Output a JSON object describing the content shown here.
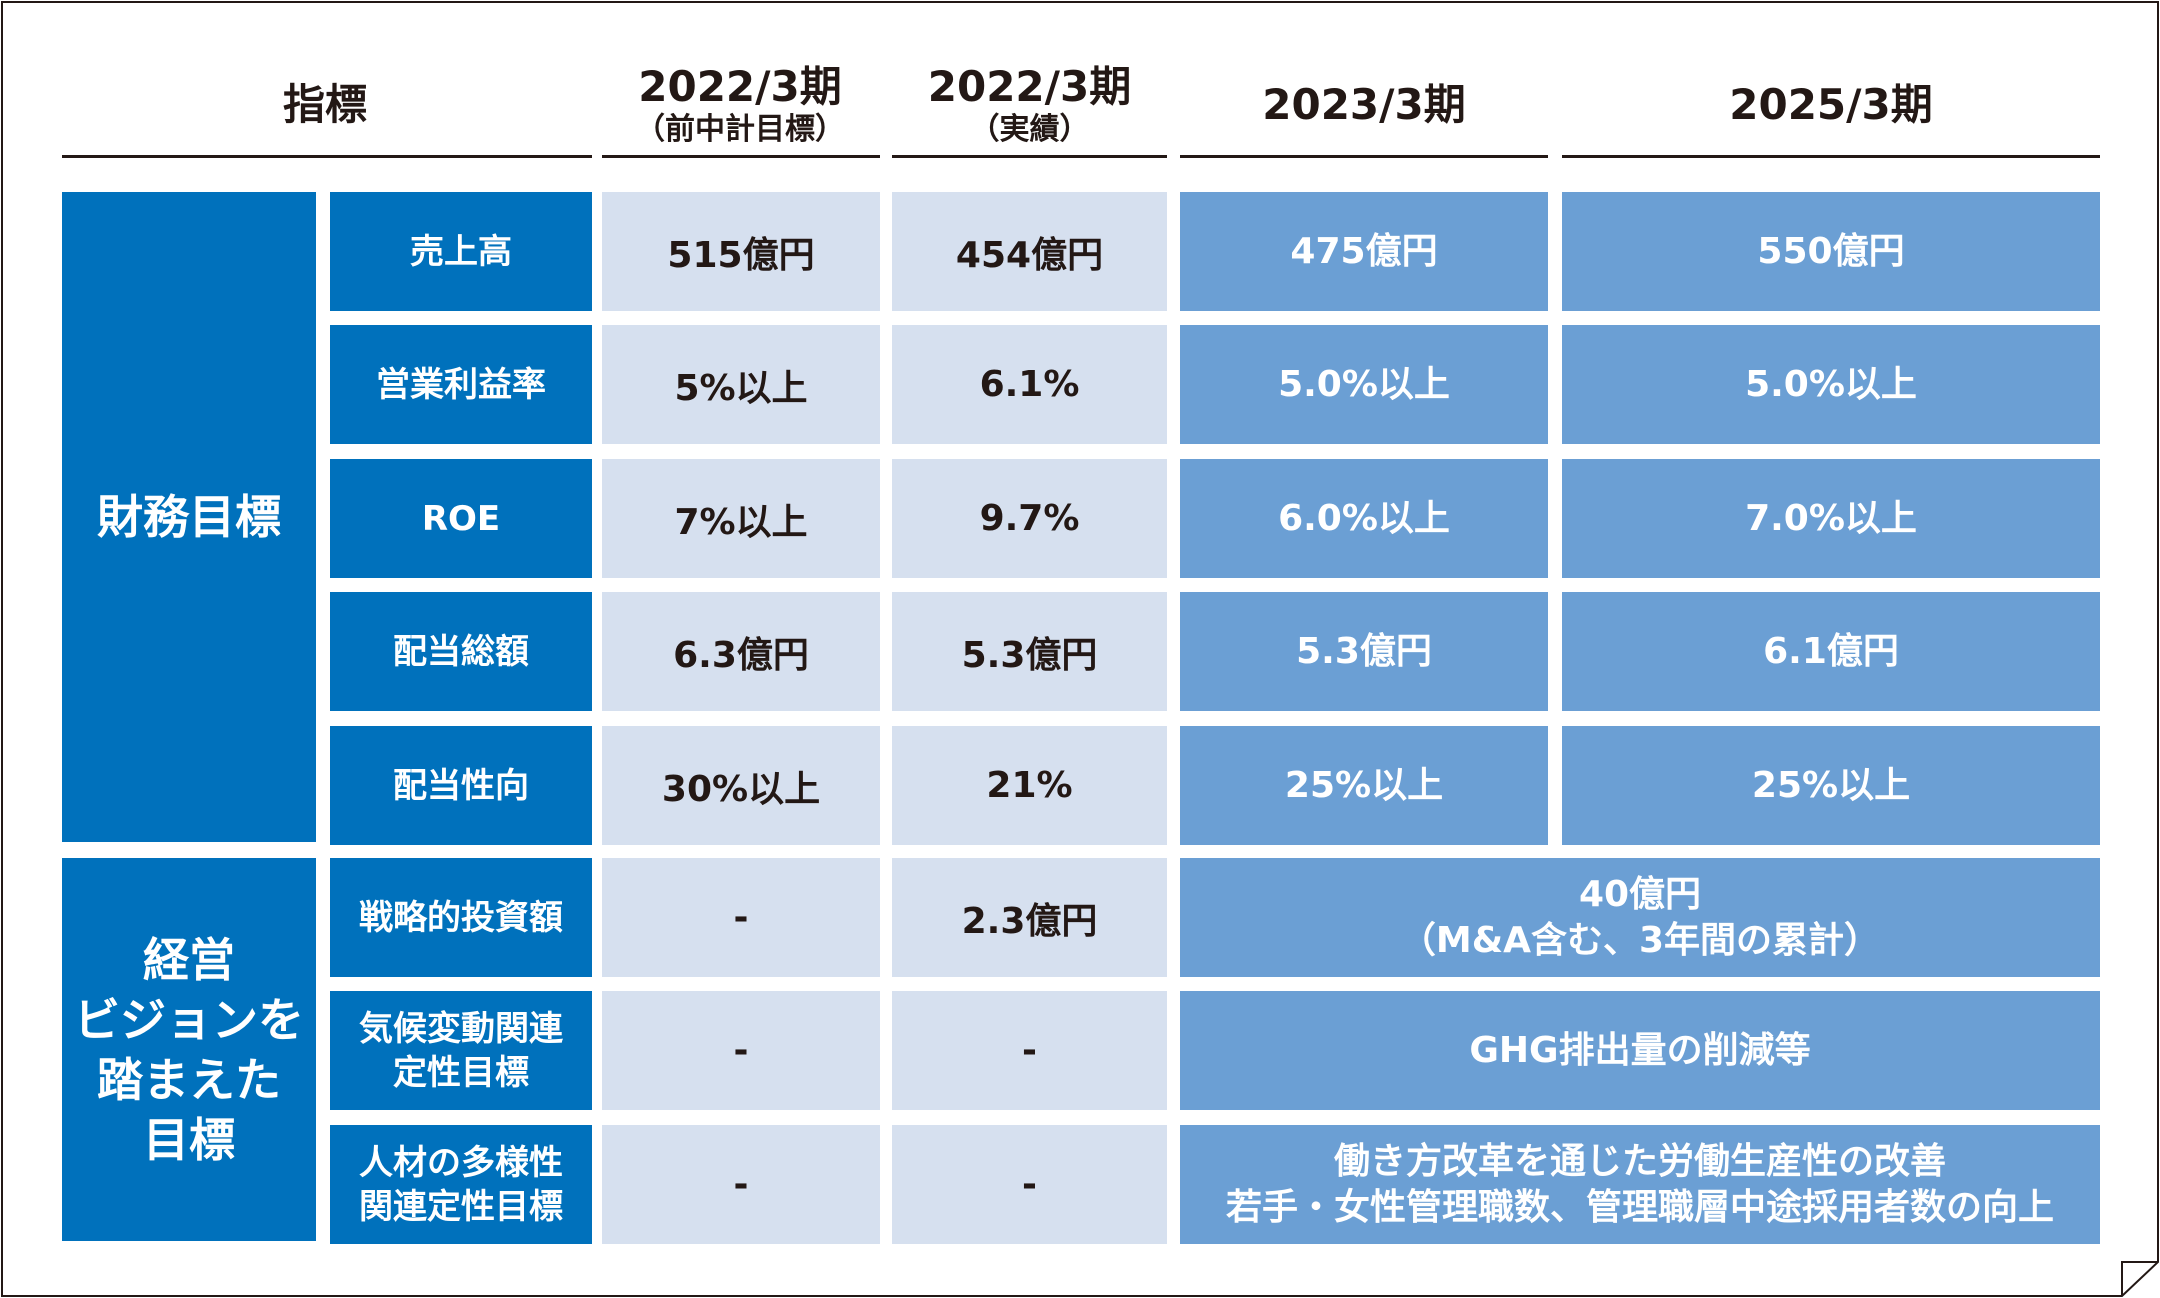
{
  "headers": {
    "indicator": "指標",
    "col1": {
      "main": "2022/3期",
      "sub": "（前中計目標）"
    },
    "col2": {
      "main": "2022/3期",
      "sub": "（実績）"
    },
    "col3": {
      "main": "2023/3期"
    },
    "col4": {
      "main": "2025/3期"
    }
  },
  "categories": {
    "financial": [
      "財務目標"
    ],
    "vision": [
      "経営",
      "ビジョンを",
      "踏まえた",
      "目標"
    ]
  },
  "financial_rows": [
    {
      "label": [
        "売上高"
      ],
      "v1": "515億円",
      "v2": "454億円",
      "v3": "475億円",
      "v4": "550億円"
    },
    {
      "label": [
        "営業利益率"
      ],
      "v1": "5%以上",
      "v2": "6.1%",
      "v3": "5.0%以上",
      "v4": "5.0%以上"
    },
    {
      "label": [
        "ROE"
      ],
      "v1": "7%以上",
      "v2": "9.7%",
      "v3": "6.0%以上",
      "v4": "7.0%以上"
    },
    {
      "label": [
        "配当総額"
      ],
      "v1": "6.3億円",
      "v2": "5.3億円",
      "v3": "5.3億円",
      "v4": "6.1億円"
    },
    {
      "label": [
        "配当性向"
      ],
      "v1": "30%以上",
      "v2": "21%",
      "v3": "25%以上",
      "v4": "25%以上"
    }
  ],
  "vision_rows": [
    {
      "label": [
        "戦略的投資額"
      ],
      "v1": "-",
      "v2": "2.3億円",
      "merged": [
        "40億円",
        "（M&A含む、3年間の累計）"
      ]
    },
    {
      "label": [
        "気候変動関連",
        "定性目標"
      ],
      "v1": "-",
      "v2": "-",
      "merged": [
        "GHG排出量の削減等"
      ]
    },
    {
      "label": [
        "人材の多様性",
        "関連定性目標"
      ],
      "v1": "-",
      "v2": "-",
      "merged": [
        "働き方改革を通じた労働生産性の改善",
        "若手・女性管理職数、管理職層中途採用者数の向上"
      ]
    }
  ]
}
